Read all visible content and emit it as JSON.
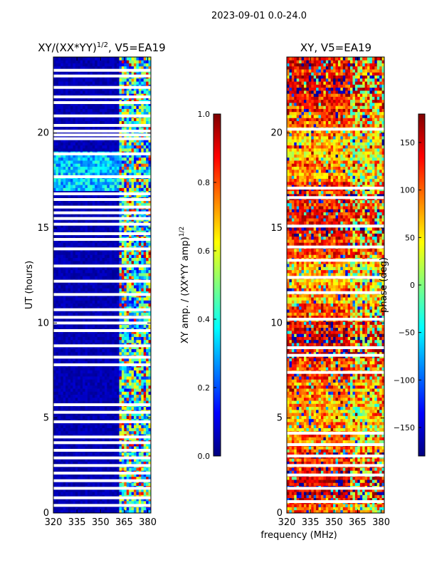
{
  "suptitle": "2023-09-01 0.0-24.0",
  "chart_data": [
    {
      "type": "heatmap",
      "title": "XY/(XX*YY)",
      "title_exponent": "1/2",
      "title_suffix": ", V5=EA19",
      "ylabel": "UT (hours)",
      "xlabel": "",
      "xlim": [
        320,
        382
      ],
      "ylim": [
        0,
        24
      ],
      "xticks": [
        "320",
        "335",
        "350",
        "365",
        "380"
      ],
      "yticks": [
        "0",
        "5",
        "10",
        "15",
        "20"
      ],
      "colormap": "jet",
      "colorbar": {
        "label": "XY amp. / (XX*YY amp)",
        "label_exponent": "1/2",
        "range": [
          0.0,
          1.0
        ],
        "ticks": [
          "0.0",
          "0.2",
          "0.4",
          "0.6",
          "0.8",
          "1.0"
        ]
      },
      "bright_band_mhz": [
        362,
        382
      ],
      "flagged_white_rows_hours": [
        23.3,
        23.0,
        22.4,
        21.9,
        21.6,
        20.9,
        20.4,
        20.1,
        19.9,
        19.7,
        18.9,
        17.7,
        16.8,
        16.5,
        16.1,
        15.8,
        15.5,
        15.2,
        14.7,
        14.4,
        13.9,
        13.0,
        12.2,
        11.5,
        10.7,
        10.3,
        10.0,
        9.6,
        8.8,
        8.2,
        7.8,
        5.7,
        5.3,
        4.8,
        4.0,
        3.7,
        3.3,
        2.9,
        2.5,
        2.1,
        1.7,
        1.3,
        0.8,
        0.4
      ]
    },
    {
      "type": "heatmap",
      "title": "XY, V5=EA19",
      "ylabel": "",
      "xlabel": "frequency (MHz)",
      "xlim": [
        320,
        382
      ],
      "ylim": [
        0,
        24
      ],
      "xticks": [
        "320",
        "335",
        "350",
        "365",
        "380"
      ],
      "yticks": [
        "0",
        "5",
        "10",
        "15",
        "20"
      ],
      "colormap": "jet",
      "colorbar": {
        "label": "phase (deg)",
        "range": [
          -180,
          180
        ],
        "ticks": [
          "−150",
          "−100",
          "−50",
          "0",
          "50",
          "100",
          "150"
        ],
        "tick_values": [
          -150,
          -100,
          -50,
          0,
          50,
          100,
          150
        ]
      },
      "flagged_white_rows_hours": [
        20.2,
        17.1,
        16.6,
        15.1,
        14.0,
        13.3,
        12.4,
        11.6,
        10.2,
        8.7,
        8.3,
        7.4,
        4.2,
        3.6,
        3.0,
        2.5,
        2.0,
        1.3,
        0.6
      ]
    }
  ]
}
